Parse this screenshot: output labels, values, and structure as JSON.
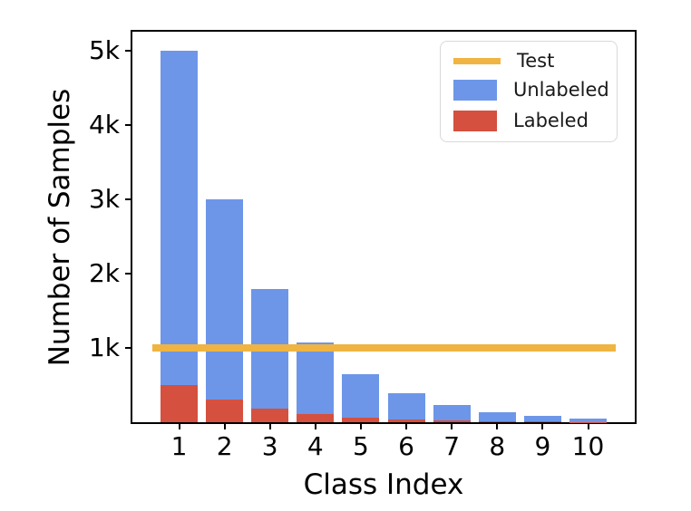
{
  "chart_data": {
    "type": "bar",
    "stacked": true,
    "xlabel": "Class Index",
    "ylabel": "Number of Samples",
    "categories": [
      "1",
      "2",
      "3",
      "4",
      "5",
      "6",
      "7",
      "8",
      "9",
      "10"
    ],
    "series": [
      {
        "name": "Labeled",
        "color": "#d5503f",
        "values": [
          500,
          299,
          179,
          107,
          64,
          39,
          23,
          14,
          8,
          5
        ]
      },
      {
        "name": "Unlabeled",
        "color": "#6d96e8",
        "values": [
          4500,
          2695,
          1614,
          967,
          579,
          346,
          208,
          124,
          75,
          45
        ]
      }
    ],
    "totals": [
      5000,
      2994,
      1793,
      1074,
      643,
      385,
      231,
      138,
      83,
      50
    ],
    "reference_line": {
      "name": "Test",
      "value": 1000,
      "color": "#f0b442"
    },
    "yticks": [
      {
        "value": 1000,
        "label": "1k"
      },
      {
        "value": 2000,
        "label": "2k"
      },
      {
        "value": 3000,
        "label": "3k"
      },
      {
        "value": 4000,
        "label": "4k"
      },
      {
        "value": 5000,
        "label": "5k"
      }
    ],
    "ylim": [
      0,
      5250
    ],
    "grid": false,
    "background": "#ffffff",
    "spine_color": "#000000",
    "legend": {
      "position": "upper-right",
      "entries": [
        {
          "label": "Test",
          "swatch": "line",
          "color": "#f0b442"
        },
        {
          "label": "Unlabeled",
          "swatch": "patch",
          "color": "#6d96e8"
        },
        {
          "label": "Labeled",
          "swatch": "patch",
          "color": "#d5503f"
        }
      ]
    }
  }
}
